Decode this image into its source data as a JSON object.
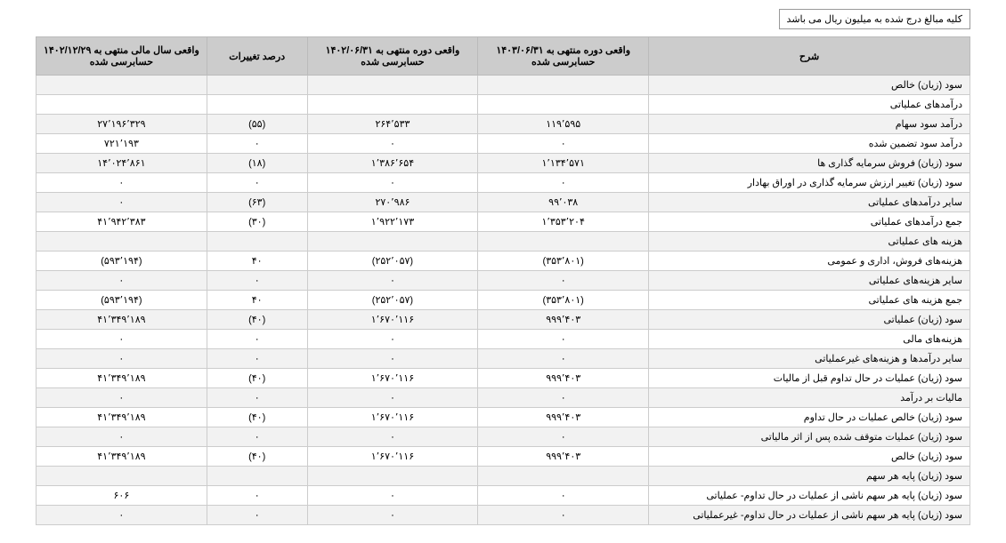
{
  "note": "کلیه مبالغ درج شده به میلیون ریال می باشد",
  "headers": [
    "شرح",
    "واقعی دوره منتهی به ۱۴۰۳/۰۶/۳۱ حسابرسی شده",
    "واقعی دوره منتهی به ۱۴۰۲/۰۶/۳۱ حسابرسی شده",
    "درصد تغییرات",
    "واقعی سال مالی منتهی به ۱۴۰۲/۱۲/۲۹ حسابرسی شده"
  ],
  "rows": [
    {
      "desc": "سود (زیان) خالص",
      "c1": "",
      "c2": "",
      "c3": "",
      "c4": ""
    },
    {
      "desc": "درآمدهای عملیاتی",
      "c1": "",
      "c2": "",
      "c3": "",
      "c4": ""
    },
    {
      "desc": "درآمد سود سهام",
      "c1": "۱۱۹٬۵۹۵",
      "c2": "۲۶۴٬۵۳۳",
      "c3": "(۵۵)",
      "c4": "۲۷٬۱۹۶٬۳۲۹"
    },
    {
      "desc": "درآمد سود تضمین شده",
      "c1": "۰",
      "c2": "۰",
      "c3": "۰",
      "c4": "۷۲۱٬۱۹۳"
    },
    {
      "desc": "سود (زیان) فروش سرمایه گذاری ها",
      "c1": "۱٬۱۳۴٬۵۷۱",
      "c2": "۱٬۳۸۶٬۶۵۴",
      "c3": "(۱۸)",
      "c4": "۱۴٬۰۲۴٬۸۶۱"
    },
    {
      "desc": "سود (زیان) تغییر ارزش سرمایه گذاری در اوراق بهادار",
      "c1": "۰",
      "c2": "۰",
      "c3": "۰",
      "c4": "۰"
    },
    {
      "desc": "سایر درآمدهای عملیاتی",
      "c1": "۹۹٬۰۳۸",
      "c2": "۲۷۰٬۹۸۶",
      "c3": "(۶۳)",
      "c4": "۰"
    },
    {
      "desc": "جمع درآمدهای عملیاتی",
      "c1": "۱٬۳۵۳٬۲۰۴",
      "c2": "۱٬۹۲۲٬۱۷۳",
      "c3": "(۳۰)",
      "c4": "۴۱٬۹۴۲٬۳۸۳"
    },
    {
      "desc": "هزینه های عملیاتی",
      "c1": "",
      "c2": "",
      "c3": "",
      "c4": ""
    },
    {
      "desc": "هزینه‌های فروش، اداری و عمومی",
      "c1": "(۳۵۳٬۸۰۱)",
      "c2": "(۲۵۲٬۰۵۷)",
      "c3": "۴۰",
      "c4": "(۵۹۳٬۱۹۴)"
    },
    {
      "desc": "سایر هزینه‌های عملیاتی",
      "c1": "۰",
      "c2": "۰",
      "c3": "۰",
      "c4": "۰"
    },
    {
      "desc": "جمع هزینه های عملیاتی",
      "c1": "(۳۵۳٬۸۰۱)",
      "c2": "(۲۵۲٬۰۵۷)",
      "c3": "۴۰",
      "c4": "(۵۹۳٬۱۹۴)"
    },
    {
      "desc": "سود (زیان) عملیاتی",
      "c1": "۹۹۹٬۴۰۳",
      "c2": "۱٬۶۷۰٬۱۱۶",
      "c3": "(۴۰)",
      "c4": "۴۱٬۳۴۹٬۱۸۹"
    },
    {
      "desc": "هزینه‌های مالی",
      "c1": "۰",
      "c2": "۰",
      "c3": "۰",
      "c4": "۰"
    },
    {
      "desc": "سایر درآمدها و هزینه‌های غیرعملیاتی",
      "c1": "۰",
      "c2": "۰",
      "c3": "۰",
      "c4": "۰"
    },
    {
      "desc": "سود (زیان) عملیات در حال تداوم قبل از مالیات",
      "c1": "۹۹۹٬۴۰۳",
      "c2": "۱٬۶۷۰٬۱۱۶",
      "c3": "(۴۰)",
      "c4": "۴۱٬۳۴۹٬۱۸۹"
    },
    {
      "desc": "مالیات بر درآمد",
      "c1": "۰",
      "c2": "۰",
      "c3": "۰",
      "c4": "۰"
    },
    {
      "desc": "سود (زیان) خالص عملیات در حال تداوم",
      "c1": "۹۹۹٬۴۰۳",
      "c2": "۱٬۶۷۰٬۱۱۶",
      "c3": "(۴۰)",
      "c4": "۴۱٬۳۴۹٬۱۸۹"
    },
    {
      "desc": "سود (زیان) عملیات متوقف شده پس از اثر مالیاتی",
      "c1": "۰",
      "c2": "۰",
      "c3": "۰",
      "c4": "۰"
    },
    {
      "desc": "سود (زیان) خالص",
      "c1": "۹۹۹٬۴۰۳",
      "c2": "۱٬۶۷۰٬۱۱۶",
      "c3": "(۴۰)",
      "c4": "۴۱٬۳۴۹٬۱۸۹"
    },
    {
      "desc": "سود (زیان) پایه هر سهم",
      "c1": "",
      "c2": "",
      "c3": "",
      "c4": ""
    },
    {
      "desc": "سود (زیان) پایه هر سهم ناشی از عملیات در حال تداوم- عملیاتی",
      "c1": "۰",
      "c2": "۰",
      "c3": "۰",
      "c4": "۶۰۶"
    },
    {
      "desc": "سود (زیان) پایه هر سهم ناشی از عملیات در حال تداوم- غیرعملیاتی",
      "c1": "۰",
      "c2": "۰",
      "c3": "۰",
      "c4": "۰"
    }
  ]
}
